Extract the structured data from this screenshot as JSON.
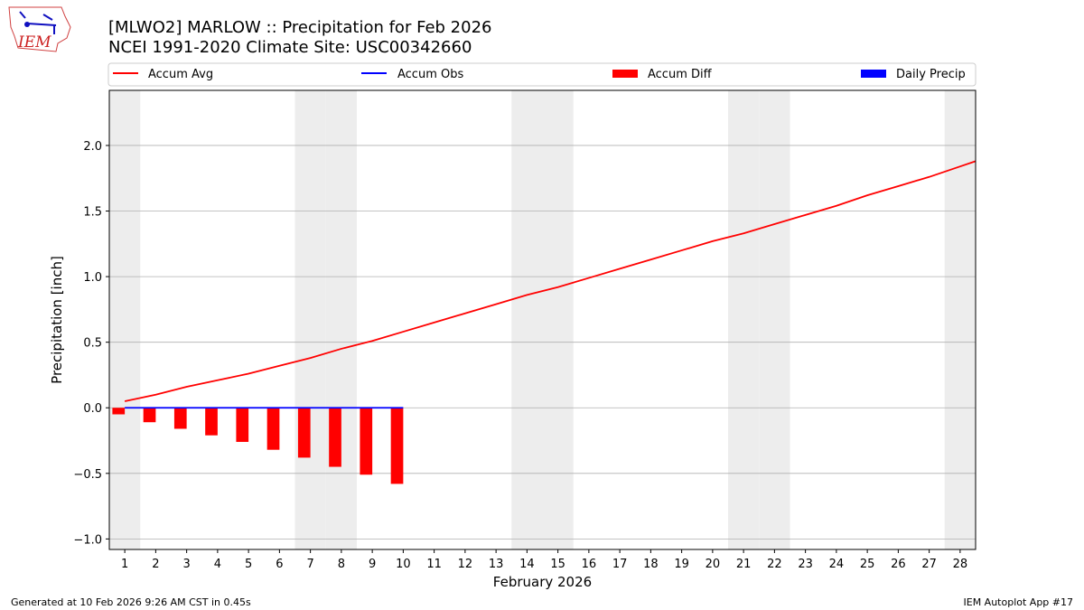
{
  "header": {
    "title": "[MLWO2] MARLOW :: Precipitation for Feb 2026",
    "subtitle": "NCEI 1991-2020 Climate Site: USC00342660",
    "logo_text": "IEM"
  },
  "footer": {
    "left": "Generated at 10 Feb 2026 9:26 AM CST in 0.45s",
    "right": "IEM Autoplot App #17"
  },
  "chart_data": {
    "type": "bar+line",
    "xlabel": "February 2026",
    "ylabel": "Precipitation [inch]",
    "xlim": [
      0.5,
      28.5
    ],
    "ylim": [
      -1.08,
      2.42
    ],
    "x_ticks": [
      1,
      2,
      3,
      4,
      5,
      6,
      7,
      8,
      9,
      10,
      11,
      12,
      13,
      14,
      15,
      16,
      17,
      18,
      19,
      20,
      21,
      22,
      23,
      24,
      25,
      26,
      27,
      28
    ],
    "y_ticks": [
      -1.0,
      -0.5,
      0.0,
      0.5,
      1.0,
      1.5,
      2.0
    ],
    "y_tick_labels": [
      "−1.0",
      "−0.5",
      "0.0",
      "0.5",
      "1.0",
      "1.5",
      "2.0"
    ],
    "grid": "horizontal",
    "legend_placement": "top",
    "weekend_shading": [
      1,
      7,
      8,
      14,
      15,
      21,
      22,
      28
    ],
    "shading_color": "#ededed",
    "series": [
      {
        "name": "Accum Avg",
        "kind": "line",
        "color": "#ff0000",
        "x": [
          1,
          2,
          3,
          4,
          5,
          6,
          7,
          8,
          9,
          10,
          11,
          12,
          13,
          14,
          15,
          16,
          17,
          18,
          19,
          20,
          21,
          22,
          23,
          24,
          25,
          26,
          27,
          28,
          28.5
        ],
        "values": [
          0.05,
          0.1,
          0.16,
          0.21,
          0.26,
          0.32,
          0.38,
          0.45,
          0.51,
          0.58,
          0.65,
          0.72,
          0.79,
          0.86,
          0.92,
          0.99,
          1.06,
          1.13,
          1.2,
          1.27,
          1.33,
          1.4,
          1.47,
          1.54,
          1.62,
          1.69,
          1.76,
          1.84,
          1.88
        ]
      },
      {
        "name": "Accum Obs",
        "kind": "line",
        "color": "#0000ff",
        "x": [
          1,
          2,
          3,
          4,
          5,
          6,
          7,
          8,
          9,
          10
        ],
        "values": [
          0,
          0,
          0,
          0,
          0,
          0,
          0,
          0,
          0,
          0
        ]
      },
      {
        "name": "Accum Diff",
        "kind": "bar",
        "color": "#ff0000",
        "x": [
          1,
          2,
          3,
          4,
          5,
          6,
          7,
          8,
          9,
          10
        ],
        "values": [
          -0.05,
          -0.11,
          -0.16,
          -0.21,
          -0.26,
          -0.32,
          -0.38,
          -0.45,
          -0.51,
          -0.58
        ]
      },
      {
        "name": "Daily Precip",
        "kind": "bar",
        "color": "#0000ff",
        "x": [
          1,
          2,
          3,
          4,
          5,
          6,
          7,
          8,
          9,
          10
        ],
        "values": [
          0,
          0,
          0,
          0,
          0,
          0,
          0,
          0,
          0,
          0
        ]
      }
    ]
  }
}
